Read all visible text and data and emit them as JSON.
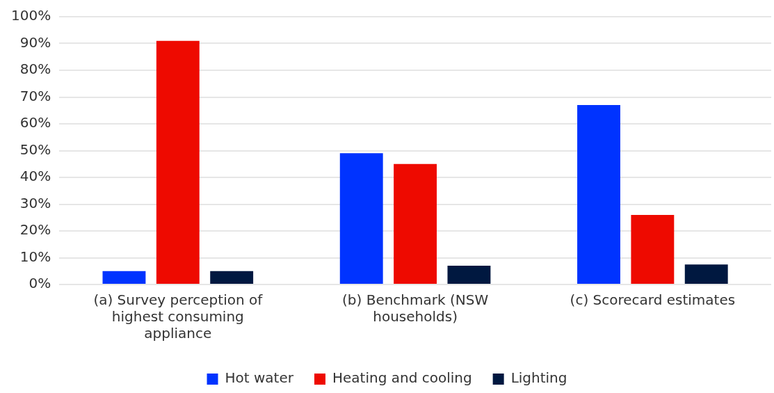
{
  "chart_data": {
    "type": "bar",
    "categories": [
      "(a) Survey perception of highest consuming appliance",
      "(b) Benchmark (NSW households)",
      "(c) Scorecard estimates"
    ],
    "series": [
      {
        "name": "Hot water",
        "color": "#0033ff",
        "values": [
          5,
          49,
          67
        ]
      },
      {
        "name": "Heating and cooling",
        "color": "#ee0a00",
        "values": [
          91,
          45,
          26
        ]
      },
      {
        "name": "Lighting",
        "color": "#001840",
        "values": [
          5,
          7,
          7.5
        ]
      }
    ],
    "ylim": [
      0,
      100
    ],
    "yticks": [
      {
        "value": 0,
        "label": "0%"
      },
      {
        "value": 10,
        "label": "10%"
      },
      {
        "value": 20,
        "label": "20%"
      },
      {
        "value": 30,
        "label": "30%"
      },
      {
        "value": 40,
        "label": "40%"
      },
      {
        "value": 50,
        "label": "50%"
      },
      {
        "value": 60,
        "label": "60%"
      },
      {
        "value": 70,
        "label": "70%"
      },
      {
        "value": 80,
        "label": "80%"
      },
      {
        "value": 90,
        "label": "90%"
      },
      {
        "value": 100,
        "label": "100%"
      }
    ],
    "grid": "y",
    "legend": "bottom"
  }
}
